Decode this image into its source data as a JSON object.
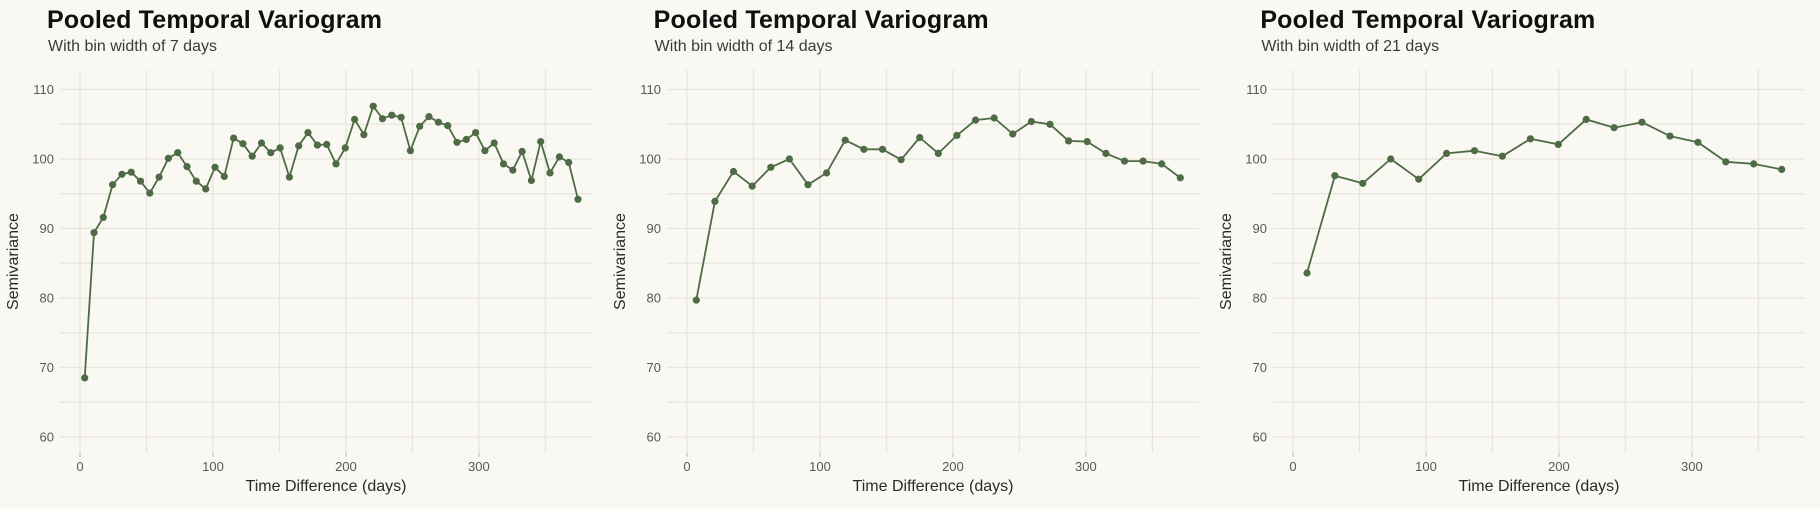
{
  "figure": {
    "background_color": "#f9f8f2",
    "grid_color": "#e7e5dd",
    "line_color": "#4e6b45",
    "tick_label_color": "#5a5852",
    "axis_title_color": "#2a2a2a"
  },
  "chart_data": [
    {
      "type": "line",
      "title": "Pooled Temporal Variogram",
      "subtitle": "With bin width of 7 days",
      "xlabel": "Time Difference (days)",
      "ylabel": "Semivariance",
      "xticks": [
        0,
        100,
        200,
        300
      ],
      "yticks": [
        60,
        70,
        80,
        90,
        100,
        110
      ],
      "minor_grid_x_step": 50,
      "minor_grid_x_max": 350,
      "minor_grid_y_step": 5,
      "xlim": [
        -15,
        385
      ],
      "ylim": [
        57.5,
        113
      ],
      "legend": "none",
      "x": [
        3.5,
        10.5,
        17.5,
        24.5,
        31.5,
        38.5,
        45.5,
        52.5,
        59.5,
        66.5,
        73.5,
        80.5,
        87.5,
        94.5,
        101.5,
        108.5,
        115.5,
        122.5,
        129.5,
        136.5,
        143.5,
        150.5,
        157.5,
        164.5,
        171.5,
        178.5,
        185.5,
        192.5,
        199.5,
        206.5,
        213.5,
        220.5,
        227.5,
        234.5,
        241.5,
        248.5,
        255.5,
        262.5,
        269.5,
        276.5,
        283.5,
        290.5,
        297.5,
        304.5,
        311.5,
        318.5,
        325.5,
        332.5,
        339.5,
        346.5,
        353.5,
        360.5,
        367.5,
        374.5
      ],
      "y": [
        68.5,
        89.4,
        91.6,
        96.3,
        97.8,
        98.1,
        96.8,
        95.1,
        97.4,
        100.1,
        100.9,
        98.9,
        96.8,
        95.7,
        98.8,
        97.5,
        103.0,
        102.2,
        100.4,
        102.3,
        100.9,
        101.6,
        97.4,
        101.9,
        103.8,
        102.0,
        102.1,
        99.3,
        101.6,
        105.7,
        103.5,
        107.6,
        105.8,
        106.3,
        106.0,
        101.2,
        104.7,
        106.1,
        105.3,
        104.8,
        102.4,
        102.8,
        103.8,
        101.2,
        102.3,
        99.3,
        98.4,
        101.1,
        96.9,
        102.5,
        98.0,
        100.3,
        99.5,
        94.2
      ]
    },
    {
      "type": "line",
      "title": "Pooled Temporal Variogram",
      "subtitle": "With bin width of 14 days",
      "xlabel": "Time Difference (days)",
      "ylabel": "Semivariance",
      "xticks": [
        0,
        100,
        200,
        300
      ],
      "yticks": [
        60,
        70,
        80,
        90,
        100,
        110
      ],
      "minor_grid_x_step": 50,
      "minor_grid_x_max": 350,
      "minor_grid_y_step": 5,
      "xlim": [
        -15,
        385
      ],
      "ylim": [
        57.5,
        113
      ],
      "legend": "none",
      "x": [
        7,
        21,
        35,
        49,
        63,
        77,
        91,
        105,
        119,
        133,
        147,
        161,
        175,
        189,
        203,
        217,
        231,
        245,
        259,
        273,
        287,
        301,
        315,
        329,
        343,
        357,
        371
      ],
      "y": [
        79.7,
        93.9,
        98.2,
        96.1,
        98.8,
        100.0,
        96.3,
        98.0,
        102.7,
        101.4,
        101.4,
        99.9,
        103.1,
        100.8,
        103.4,
        105.6,
        105.9,
        103.6,
        105.4,
        105.0,
        102.6,
        102.5,
        100.8,
        99.7,
        99.7,
        99.3,
        97.3
      ]
    },
    {
      "type": "line",
      "title": "Pooled Temporal Variogram",
      "subtitle": "With bin width of 21 days",
      "xlabel": "Time Difference (days)",
      "ylabel": "Semivariance",
      "xticks": [
        0,
        100,
        200,
        300
      ],
      "yticks": [
        60,
        70,
        80,
        90,
        100,
        110
      ],
      "minor_grid_x_step": 50,
      "minor_grid_x_max": 350,
      "minor_grid_y_step": 5,
      "xlim": [
        -15,
        385
      ],
      "ylim": [
        57.5,
        113
      ],
      "legend": "none",
      "x": [
        10.5,
        31.5,
        52.5,
        73.5,
        94.5,
        115.5,
        136.5,
        157.5,
        178.5,
        199.5,
        220.5,
        241.5,
        262.5,
        283.5,
        304.5,
        325.5,
        346.5,
        367.5
      ],
      "y": [
        83.6,
        97.6,
        96.5,
        100.0,
        97.1,
        100.8,
        101.2,
        100.4,
        102.9,
        102.1,
        105.7,
        104.5,
        105.3,
        103.3,
        102.4,
        99.6,
        99.3,
        98.5
      ]
    }
  ]
}
